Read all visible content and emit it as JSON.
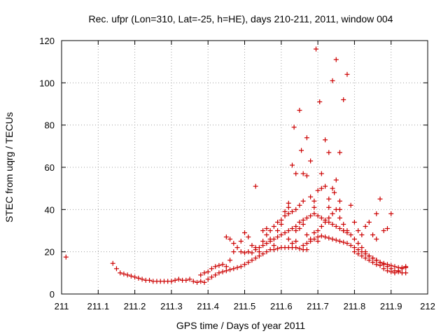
{
  "chart_data": {
    "type": "scatter",
    "title": "Rec. ufpr (Lon=310, Lat=-25, h=HE), days 210-211, 2011, window 004",
    "xlabel": "GPS time / Days of year 2011",
    "ylabel": "STEC from uqrg / TECUs",
    "xlim": [
      211,
      212
    ],
    "ylim": [
      0,
      120
    ],
    "xticks": [
      "211",
      "211.1",
      "211.2",
      "211.3",
      "211.4",
      "211.5",
      "211.6",
      "211.7",
      "211.8",
      "211.9",
      "212"
    ],
    "yticks": [
      "0",
      "20",
      "40",
      "60",
      "80",
      "100",
      "120"
    ],
    "grid": true,
    "marker": "+",
    "color": "#cc0000",
    "points": [
      [
        211.012,
        17.5
      ],
      [
        211.14,
        14.5
      ],
      [
        211.15,
        12
      ],
      [
        211.16,
        10
      ],
      [
        211.17,
        9.5
      ],
      [
        211.18,
        9
      ],
      [
        211.19,
        8.5
      ],
      [
        211.2,
        8
      ],
      [
        211.21,
        7.5
      ],
      [
        211.22,
        7
      ],
      [
        211.23,
        6.5
      ],
      [
        211.24,
        6.5
      ],
      [
        211.25,
        6
      ],
      [
        211.26,
        6
      ],
      [
        211.27,
        6
      ],
      [
        211.28,
        6
      ],
      [
        211.29,
        6
      ],
      [
        211.3,
        6
      ],
      [
        211.31,
        6.5
      ],
      [
        211.32,
        7
      ],
      [
        211.33,
        6.5
      ],
      [
        211.34,
        6.5
      ],
      [
        211.35,
        7
      ],
      [
        211.36,
        6
      ],
      [
        211.37,
        5.5
      ],
      [
        211.38,
        6
      ],
      [
        211.39,
        5.5
      ],
      [
        211.4,
        7
      ],
      [
        211.41,
        8
      ],
      [
        211.42,
        9
      ],
      [
        211.43,
        10
      ],
      [
        211.44,
        10.5
      ],
      [
        211.45,
        11
      ],
      [
        211.46,
        11.5
      ],
      [
        211.47,
        12
      ],
      [
        211.48,
        12.5
      ],
      [
        211.49,
        13
      ],
      [
        211.5,
        14
      ],
      [
        211.51,
        15
      ],
      [
        211.52,
        16
      ],
      [
        211.53,
        17
      ],
      [
        211.54,
        18
      ],
      [
        211.55,
        19
      ],
      [
        211.56,
        20
      ],
      [
        211.57,
        21
      ],
      [
        211.58,
        21
      ],
      [
        211.59,
        21.5
      ],
      [
        211.6,
        22
      ],
      [
        211.61,
        22
      ],
      [
        211.62,
        22
      ],
      [
        211.63,
        22
      ],
      [
        211.64,
        22
      ],
      [
        211.65,
        21.5
      ],
      [
        211.66,
        21
      ],
      [
        211.67,
        21
      ],
      [
        211.38,
        9
      ],
      [
        211.39,
        10
      ],
      [
        211.4,
        10.5
      ],
      [
        211.41,
        12
      ],
      [
        211.42,
        13
      ],
      [
        211.43,
        13.5
      ],
      [
        211.44,
        14
      ],
      [
        211.45,
        13
      ],
      [
        211.46,
        16
      ],
      [
        211.47,
        20
      ],
      [
        211.48,
        22
      ],
      [
        211.49,
        25
      ],
      [
        211.5,
        29
      ],
      [
        211.51,
        27
      ],
      [
        211.52,
        23
      ],
      [
        211.53,
        22
      ],
      [
        211.54,
        20
      ],
      [
        211.55,
        25
      ],
      [
        211.56,
        28
      ],
      [
        211.57,
        30
      ],
      [
        211.58,
        32
      ],
      [
        211.59,
        34
      ],
      [
        211.6,
        35
      ],
      [
        211.61,
        37
      ],
      [
        211.62,
        38
      ],
      [
        211.63,
        39
      ],
      [
        211.64,
        40
      ],
      [
        211.65,
        42
      ],
      [
        211.66,
        44
      ],
      [
        211.53,
        51
      ],
      [
        211.62,
        43
      ],
      [
        211.63,
        61
      ],
      [
        211.635,
        79
      ],
      [
        211.65,
        87
      ],
      [
        211.66,
        57
      ],
      [
        211.67,
        74
      ],
      [
        211.68,
        63
      ],
      [
        211.69,
        41
      ],
      [
        211.695,
        116
      ],
      [
        211.705,
        91
      ],
      [
        211.71,
        57
      ],
      [
        211.72,
        73
      ],
      [
        211.73,
        67
      ],
      [
        211.74,
        101
      ],
      [
        211.75,
        111
      ],
      [
        211.76,
        67
      ],
      [
        211.77,
        92
      ],
      [
        211.78,
        104
      ],
      [
        211.79,
        42
      ],
      [
        211.45,
        27
      ],
      [
        211.46,
        26
      ],
      [
        211.47,
        24
      ],
      [
        211.49,
        20
      ],
      [
        211.5,
        19.5
      ],
      [
        211.51,
        20
      ],
      [
        211.52,
        19.5
      ],
      [
        211.53,
        21
      ],
      [
        211.54,
        22
      ],
      [
        211.55,
        23
      ],
      [
        211.56,
        24
      ],
      [
        211.57,
        25
      ],
      [
        211.58,
        26
      ],
      [
        211.59,
        27
      ],
      [
        211.6,
        28
      ],
      [
        211.61,
        29
      ],
      [
        211.62,
        30
      ],
      [
        211.63,
        31
      ],
      [
        211.64,
        32
      ],
      [
        211.65,
        34
      ],
      [
        211.66,
        35
      ],
      [
        211.67,
        36
      ],
      [
        211.68,
        37
      ],
      [
        211.69,
        38
      ],
      [
        211.7,
        37
      ],
      [
        211.71,
        36
      ],
      [
        211.72,
        35
      ],
      [
        211.73,
        34
      ],
      [
        211.74,
        33
      ],
      [
        211.75,
        32
      ],
      [
        211.76,
        31
      ],
      [
        211.77,
        30
      ],
      [
        211.78,
        29
      ],
      [
        211.66,
        23
      ],
      [
        211.67,
        24
      ],
      [
        211.68,
        25
      ],
      [
        211.69,
        26
      ],
      [
        211.7,
        27
      ],
      [
        211.71,
        27.5
      ],
      [
        211.72,
        27
      ],
      [
        211.73,
        26.5
      ],
      [
        211.74,
        26
      ],
      [
        211.75,
        25.5
      ],
      [
        211.76,
        25
      ],
      [
        211.77,
        24.5
      ],
      [
        211.78,
        24
      ],
      [
        211.79,
        23
      ],
      [
        211.8,
        22
      ],
      [
        211.81,
        21
      ],
      [
        211.82,
        20
      ],
      [
        211.83,
        19
      ],
      [
        211.84,
        18
      ],
      [
        211.85,
        17
      ],
      [
        211.86,
        16
      ],
      [
        211.87,
        15
      ],
      [
        211.88,
        14
      ],
      [
        211.89,
        13
      ],
      [
        211.9,
        12
      ],
      [
        211.91,
        11
      ],
      [
        211.92,
        10.5
      ],
      [
        211.93,
        10
      ],
      [
        211.94,
        10
      ],
      [
        211.7,
        30
      ],
      [
        211.71,
        32
      ],
      [
        211.72,
        34
      ],
      [
        211.73,
        36
      ],
      [
        211.74,
        38
      ],
      [
        211.75,
        40
      ],
      [
        211.76,
        36
      ],
      [
        211.77,
        33
      ],
      [
        211.78,
        30
      ],
      [
        211.79,
        28
      ],
      [
        211.8,
        26
      ],
      [
        211.81,
        24
      ],
      [
        211.82,
        22
      ],
      [
        211.83,
        20
      ],
      [
        211.84,
        18
      ],
      [
        211.85,
        17
      ],
      [
        211.86,
        16
      ],
      [
        211.87,
        15
      ],
      [
        211.88,
        14.5
      ],
      [
        211.89,
        14
      ],
      [
        211.9,
        13.5
      ],
      [
        211.91,
        13
      ],
      [
        211.92,
        12.5
      ],
      [
        211.93,
        12.5
      ],
      [
        211.94,
        13
      ],
      [
        211.73,
        45
      ],
      [
        211.74,
        50
      ],
      [
        211.75,
        54
      ],
      [
        211.76,
        40
      ],
      [
        211.77,
        30
      ],
      [
        211.8,
        34
      ],
      [
        211.81,
        30
      ],
      [
        211.82,
        28
      ],
      [
        211.83,
        32
      ],
      [
        211.84,
        34
      ],
      [
        211.85,
        28
      ],
      [
        211.86,
        26
      ],
      [
        211.87,
        45
      ],
      [
        211.88,
        30
      ],
      [
        211.89,
        31
      ],
      [
        211.9,
        38
      ],
      [
        211.86,
        38
      ],
      [
        211.8,
        20
      ],
      [
        211.81,
        19
      ],
      [
        211.82,
        18
      ],
      [
        211.83,
        17
      ],
      [
        211.84,
        16
      ],
      [
        211.85,
        15
      ],
      [
        211.86,
        14
      ],
      [
        211.87,
        13.5
      ],
      [
        211.88,
        12
      ],
      [
        211.89,
        11
      ],
      [
        211.9,
        10.5
      ],
      [
        211.91,
        10
      ],
      [
        211.92,
        11
      ],
      [
        211.93,
        12
      ],
      [
        211.94,
        12.5
      ],
      [
        211.64,
        57
      ],
      [
        211.655,
        68
      ],
      [
        211.67,
        56
      ],
      [
        211.68,
        46
      ],
      [
        211.69,
        44
      ],
      [
        211.7,
        49
      ],
      [
        211.71,
        50
      ],
      [
        211.72,
        51
      ],
      [
        211.73,
        41
      ],
      [
        211.745,
        48
      ],
      [
        211.76,
        44
      ],
      [
        211.61,
        39
      ],
      [
        211.62,
        41
      ],
      [
        211.64,
        30
      ],
      [
        211.65,
        31
      ],
      [
        211.66,
        33
      ],
      [
        211.67,
        28
      ],
      [
        211.68,
        26
      ],
      [
        211.69,
        29
      ],
      [
        211.7,
        25
      ],
      [
        211.55,
        30
      ],
      [
        211.56,
        31
      ],
      [
        211.57,
        26
      ],
      [
        211.58,
        23
      ],
      [
        211.59,
        30
      ],
      [
        211.6,
        33
      ],
      [
        211.62,
        26
      ],
      [
        211.63,
        24
      ],
      [
        211.64,
        25
      ]
    ]
  }
}
